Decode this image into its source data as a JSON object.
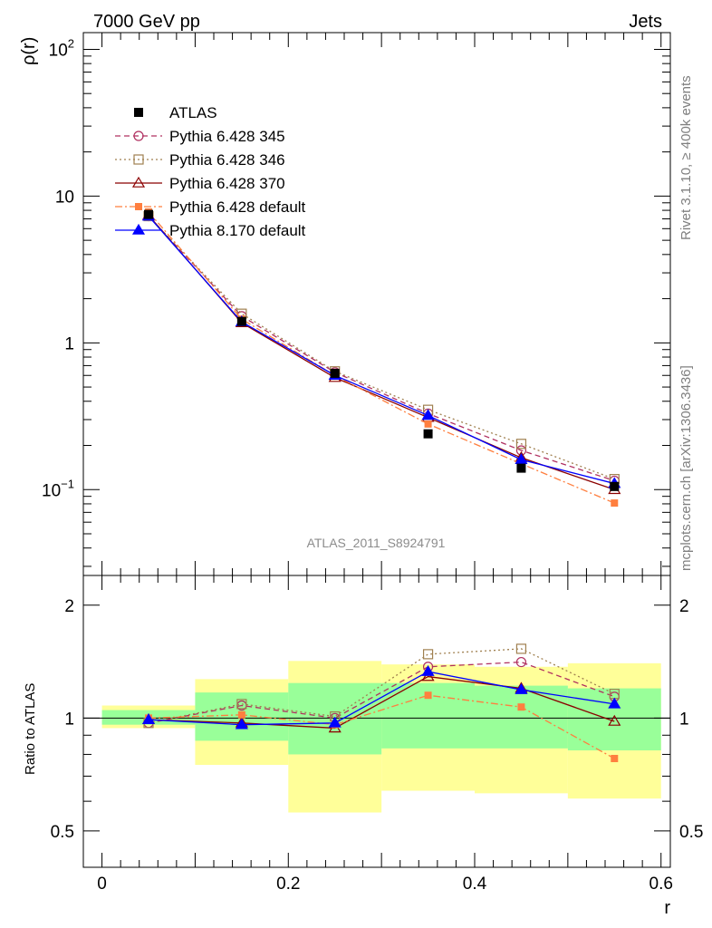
{
  "header": {
    "left": "7000 GeV pp",
    "right": "Jets"
  },
  "side_labels": {
    "rivet": "Rivet 3.1.10, ≥ 400k events",
    "mcplots": "mcplots.cern.ch [arXiv:1306.3436]"
  },
  "analysis_label": "ATLAS_2011_S8924791",
  "main_axis": {
    "ylabel": "ρ(r)",
    "yscale": "log",
    "ylim": [
      0.026,
      130
    ],
    "tick_labels": [
      {
        "value": 100,
        "base": "10",
        "exp": "2"
      },
      {
        "value": 10,
        "text": "10"
      },
      {
        "value": 1,
        "text": "1"
      },
      {
        "value": 0.1,
        "base": "10",
        "exp": "−1"
      }
    ]
  },
  "ratio_axis": {
    "ylabel": "Ratio to ATLAS",
    "yscale": "log",
    "ylim": [
      0.4,
      2.4
    ],
    "tick_labels": [
      {
        "value": 2,
        "text": "2"
      },
      {
        "value": 1,
        "text": "1"
      },
      {
        "value": 0.5,
        "text": "0.5"
      }
    ]
  },
  "x_axis": {
    "xlabel": "r",
    "xlim": [
      -0.02,
      0.61
    ],
    "tick_labels": [
      {
        "value": 0,
        "text": "0"
      },
      {
        "value": 0.2,
        "text": "0.2"
      },
      {
        "value": 0.4,
        "text": "0.4"
      },
      {
        "value": 0.6,
        "text": "0.6"
      }
    ]
  },
  "legend": {
    "placement": "top-left"
  },
  "colors": {
    "atlas": "#000000",
    "p345": "#b03060",
    "p346": "#a08050",
    "p370": "#8b0000",
    "p6def": "#ff7f3f",
    "p8def": "#0000ff",
    "band_outer": "#ffff99",
    "band_inner": "#99ff99"
  },
  "chart_data": {
    "type": "line",
    "x": [
      0.05,
      0.15,
      0.25,
      0.35,
      0.45,
      0.55
    ],
    "bin_edges": [
      0.0,
      0.1,
      0.2,
      0.3,
      0.4,
      0.5,
      0.6
    ],
    "data": {
      "name": "ATLAS",
      "values": [
        7.5,
        1.4,
        0.62,
        0.24,
        0.14,
        0.105
      ]
    },
    "series": [
      {
        "name": "Pythia 6.428 345",
        "values": [
          7.3,
          1.52,
          0.63,
          0.33,
          0.185,
          0.115
        ],
        "ratio": [
          0.97,
          1.08,
          1.0,
          1.37,
          1.41,
          1.14
        ]
      },
      {
        "name": "Pythia 6.428 346",
        "values": [
          7.3,
          1.58,
          0.64,
          0.35,
          0.205,
          0.118
        ],
        "ratio": [
          0.97,
          1.09,
          1.01,
          1.48,
          1.53,
          1.16
        ]
      },
      {
        "name": "Pythia 6.428 370",
        "values": [
          7.4,
          1.37,
          0.58,
          0.31,
          0.165,
          0.1
        ],
        "ratio": [
          0.99,
          0.97,
          0.94,
          1.29,
          1.2,
          0.98
        ]
      },
      {
        "name": "Pythia 6.428 default",
        "values": [
          7.8,
          1.45,
          0.6,
          0.28,
          0.15,
          0.081
        ],
        "ratio": [
          1.0,
          1.02,
          0.96,
          1.15,
          1.07,
          0.78
        ]
      },
      {
        "name": "Pythia 8.170 default",
        "values": [
          7.3,
          1.39,
          0.6,
          0.32,
          0.16,
          0.11
        ],
        "ratio": [
          0.99,
          0.96,
          0.97,
          1.33,
          1.19,
          1.09
        ]
      }
    ],
    "bands": {
      "outer": [
        [
          0.94,
          1.08
        ],
        [
          0.75,
          1.27
        ],
        [
          0.56,
          1.42
        ],
        [
          0.64,
          1.39
        ],
        [
          0.63,
          1.37
        ],
        [
          0.61,
          1.4
        ]
      ],
      "inner": [
        [
          0.96,
          1.05
        ],
        [
          0.87,
          1.17
        ],
        [
          0.8,
          1.24
        ],
        [
          0.83,
          1.24
        ],
        [
          0.83,
          1.22
        ],
        [
          0.82,
          1.2
        ]
      ]
    }
  }
}
